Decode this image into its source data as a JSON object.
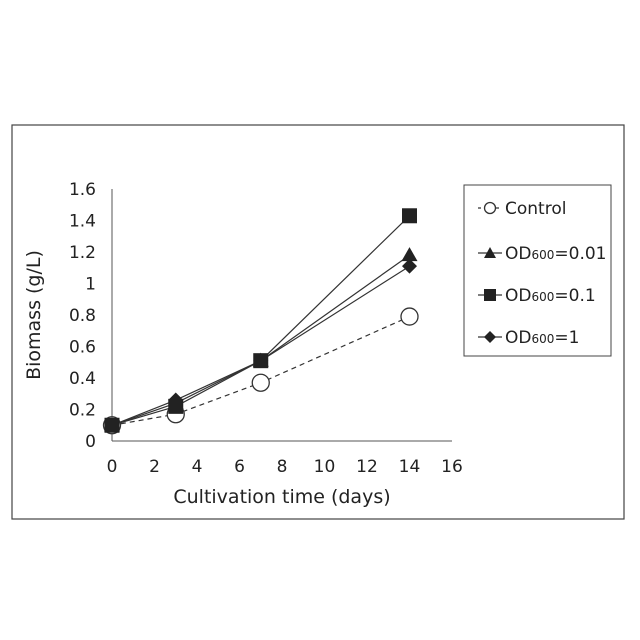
{
  "chart_data": {
    "type": "line",
    "xlabel": "Cultivation time (days)",
    "ylabel": "Biomass (g/L)",
    "xlim": [
      0,
      16
    ],
    "ylim": [
      0,
      1.6
    ],
    "xticks": [
      "0",
      "2",
      "4",
      "6",
      "8",
      "10",
      "12",
      "14",
      "16"
    ],
    "yticks": [
      "0",
      "0.2",
      "0.4",
      "0.6",
      "0.8",
      "1",
      "1.2",
      "1.4",
      "1.6"
    ],
    "grid": false,
    "legend_position": "right",
    "series": [
      {
        "name": "Control",
        "marker": "open-circle",
        "line": "dashed",
        "x": [
          0,
          3,
          7,
          14
        ],
        "y": [
          0.1,
          0.17,
          0.37,
          0.79
        ]
      },
      {
        "name": "OD600=0.01",
        "marker": "triangle",
        "line": "solid",
        "x": [
          0,
          3,
          7,
          14
        ],
        "y": [
          0.1,
          0.24,
          0.51,
          1.18
        ]
      },
      {
        "name": "OD600=0.1",
        "marker": "square",
        "line": "solid",
        "x": [
          0,
          3,
          7,
          14
        ],
        "y": [
          0.1,
          0.22,
          0.51,
          1.43
        ]
      },
      {
        "name": "OD600=1",
        "marker": "diamond",
        "line": "solid",
        "x": [
          0,
          3,
          7,
          14
        ],
        "y": [
          0.1,
          0.26,
          0.51,
          1.11
        ]
      }
    ]
  },
  "legend": {
    "items": [
      {
        "prefix": "Control",
        "sub": "",
        "suffix": ""
      },
      {
        "prefix": "OD",
        "sub": "600",
        "suffix": "=0.01"
      },
      {
        "prefix": "OD",
        "sub": "600",
        "suffix": "=0.1"
      },
      {
        "prefix": "OD",
        "sub": "600",
        "suffix": "=1"
      }
    ]
  }
}
